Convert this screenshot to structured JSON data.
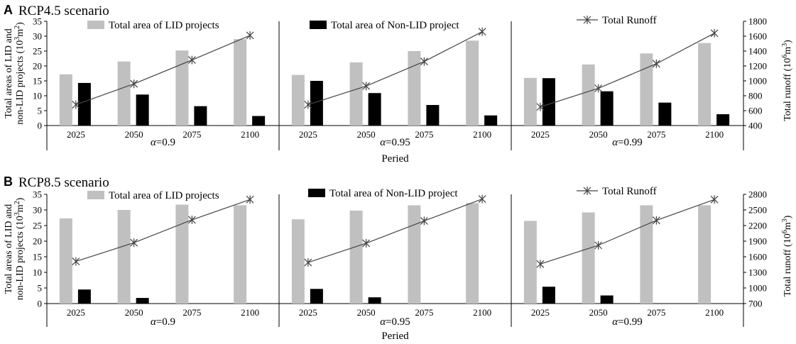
{
  "colors": {
    "lid": "#c0c0c0",
    "nonlid": "#000000",
    "runoff": "#444444",
    "axis": "#000000"
  },
  "chart_data": [
    {
      "type": "bar",
      "panel_letter": "A",
      "title": "RCP4.5 scenario",
      "categories": [
        "2025",
        "2050",
        "2075",
        "2100"
      ],
      "legend": {
        "lid": "Total area of LID projects",
        "nonlid": "Total area of Non-LID project",
        "runoff": "Total Runoff"
      },
      "ylabel_left_line1": "Total areas of LID and",
      "ylabel_left_line2_prefix": "non-LID projects (10",
      "ylabel_left_sup": "3",
      "ylabel_left_mid": "m",
      "ylabel_left_sup2": "2",
      "ylabel_left_end": ")",
      "ylabel_right_prefix": "Total runoff (10",
      "ylabel_right_sup": "6",
      "ylabel_right_mid": "m",
      "ylabel_right_sup2": "3",
      "ylabel_right_end": ")",
      "xlabel": "Peried",
      "ylim_left": [
        0,
        35
      ],
      "yticks_left": [
        0,
        5,
        10,
        15,
        20,
        25,
        30,
        35
      ],
      "ylim_right": [
        400,
        1800
      ],
      "yticks_right": [
        400,
        600,
        800,
        1000,
        1200,
        1400,
        1600,
        1800
      ],
      "subplots": [
        {
          "alpha_label": "=0.9",
          "lid": [
            17.2,
            21.5,
            25.2,
            29.0
          ],
          "nonlid": [
            14.3,
            10.4,
            6.5,
            3.2
          ],
          "runoff": [
            680,
            960,
            1280,
            1610
          ]
        },
        {
          "alpha_label": "=0.95",
          "lid": [
            17.0,
            21.2,
            25.0,
            28.5
          ],
          "nonlid": [
            15.0,
            10.9,
            6.9,
            3.4
          ],
          "runoff": [
            680,
            930,
            1260,
            1660
          ]
        },
        {
          "alpha_label": "=0.99",
          "lid": [
            16.0,
            20.5,
            24.2,
            27.7
          ],
          "nonlid": [
            15.9,
            11.5,
            7.7,
            3.8
          ],
          "runoff": [
            650,
            900,
            1230,
            1640
          ]
        }
      ]
    },
    {
      "type": "bar",
      "panel_letter": "B",
      "title": "RCP8.5 scenario",
      "categories": [
        "2025",
        "2050",
        "2075",
        "2100"
      ],
      "legend": {
        "lid": "Total area of LID projects",
        "nonlid": "Total area of Non-LID project",
        "runoff": "Total Runoff"
      },
      "ylabel_left_line1": "Total areas of LID and",
      "ylabel_left_line2_prefix": "non-LID projects (10",
      "ylabel_left_sup": "3",
      "ylabel_left_mid": "m",
      "ylabel_left_sup2": "2",
      "ylabel_left_end": ")",
      "ylabel_right_prefix": "Total runoff (10",
      "ylabel_right_sup": "6",
      "ylabel_right_mid": "m",
      "ylabel_right_sup2": "3",
      "ylabel_right_end": ")",
      "xlabel": "Peried",
      "ylim_left": [
        0,
        35
      ],
      "yticks_left": [
        0,
        5,
        10,
        15,
        20,
        25,
        30,
        35
      ],
      "ylim_right": [
        700,
        2800
      ],
      "yticks_right": [
        700,
        1000,
        1300,
        1600,
        1900,
        2200,
        2500,
        2800
      ],
      "subplots": [
        {
          "alpha_label": "=0.9",
          "lid": [
            27.3,
            30.0,
            31.7,
            31.5
          ],
          "nonlid": [
            4.5,
            1.8,
            0,
            0
          ],
          "runoff": [
            1510,
            1870,
            2310,
            2700
          ]
        },
        {
          "alpha_label": "=0.95",
          "lid": [
            27.0,
            29.8,
            31.5,
            32.2
          ],
          "nonlid": [
            4.7,
            2.0,
            0,
            0
          ],
          "runoff": [
            1490,
            1860,
            2290,
            2710
          ]
        },
        {
          "alpha_label": "=0.99",
          "lid": [
            26.5,
            29.2,
            31.5,
            31.5
          ],
          "nonlid": [
            5.4,
            2.6,
            0,
            0
          ],
          "runoff": [
            1460,
            1820,
            2300,
            2700
          ]
        }
      ]
    }
  ]
}
